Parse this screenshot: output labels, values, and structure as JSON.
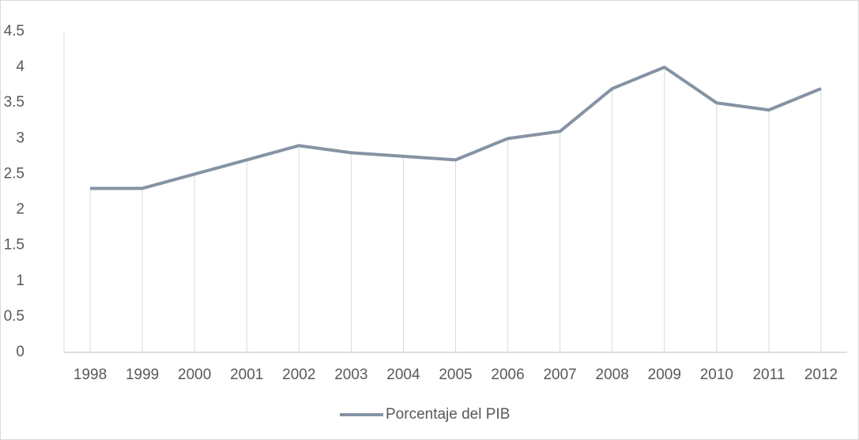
{
  "chart_data": {
    "type": "line",
    "x": [
      1998,
      1999,
      2000,
      2001,
      2002,
      2003,
      2004,
      2005,
      2006,
      2007,
      2008,
      2009,
      2010,
      2011,
      2012
    ],
    "series": [
      {
        "name": "Porcentaje del PIB",
        "color": "#8593a3",
        "values": [
          2.3,
          2.3,
          2.5,
          2.7,
          2.9,
          2.8,
          2.75,
          2.7,
          3.0,
          3.1,
          3.7,
          4.0,
          3.5,
          3.4,
          3.7
        ]
      }
    ],
    "ylim": [
      0,
      4.5
    ],
    "yticks": [
      0,
      0.5,
      1,
      1.5,
      2,
      2.5,
      3,
      3.5,
      4,
      4.5
    ],
    "drop_lines": true,
    "legend": "bottom"
  }
}
